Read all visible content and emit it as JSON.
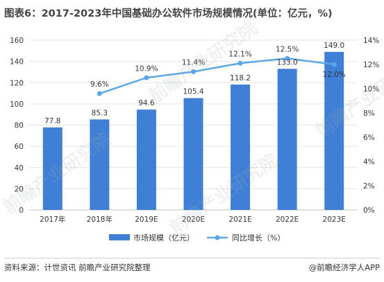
{
  "title": "图表6：2017-2023年中国基础办公软件市场规模情况(单位：亿元，%)",
  "source": "资料来源：计世资讯 前瞻产业研究院整理",
  "brand": "@前瞻经济学人APP",
  "watermark_text": "前瞻产业研究院",
  "colors": {
    "bar": "#3f7fd6",
    "line": "#5aa6e6",
    "grid": "#e3e3e3",
    "axis": "#bfbfbf"
  },
  "chart_data": {
    "type": "bar",
    "categories": [
      "2017年",
      "2018年",
      "2019E",
      "2020E",
      "2021E",
      "2022E",
      "2023E"
    ],
    "series": [
      {
        "name": "市场规模（亿元）",
        "type": "bar",
        "axis": "left",
        "values": [
          77.8,
          85.3,
          94.6,
          105.4,
          118.2,
          133.0,
          149.0
        ],
        "labels": [
          "77.8",
          "85.3",
          "94.6",
          "105.4",
          "118.2",
          "133.0",
          "149.0"
        ]
      },
      {
        "name": "同比增长（%）",
        "type": "line",
        "axis": "right",
        "values": [
          null,
          9.6,
          10.9,
          11.4,
          12.1,
          12.5,
          12.0
        ],
        "labels": [
          "",
          "9.6%",
          "10.9%",
          "11.4%",
          "12.1%",
          "12.5%",
          "12.0%"
        ]
      }
    ],
    "y_left": {
      "min": 0,
      "max": 160,
      "step": 20,
      "ticks": [
        "0",
        "20",
        "40",
        "60",
        "80",
        "100",
        "120",
        "140",
        "160"
      ]
    },
    "y_right": {
      "min": 0,
      "max": 14,
      "step": 2,
      "ticks": [
        "0%",
        "2%",
        "4%",
        "6%",
        "8%",
        "10%",
        "12%",
        "14%"
      ]
    },
    "grid": true,
    "legend_position": "bottom"
  }
}
